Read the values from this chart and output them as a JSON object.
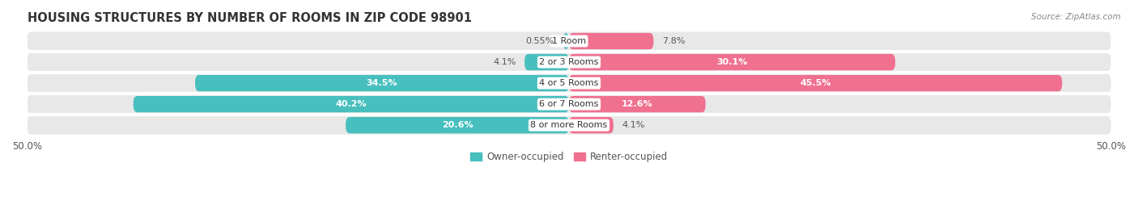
{
  "title": "HOUSING STRUCTURES BY NUMBER OF ROOMS IN ZIP CODE 98901",
  "source": "Source: ZipAtlas.com",
  "categories": [
    "1 Room",
    "2 or 3 Rooms",
    "4 or 5 Rooms",
    "6 or 7 Rooms",
    "8 or more Rooms"
  ],
  "owner_values": [
    0.55,
    4.1,
    34.5,
    40.2,
    20.6
  ],
  "renter_values": [
    7.8,
    30.1,
    45.5,
    12.6,
    4.1
  ],
  "owner_color": "#47BFBE",
  "renter_color": "#F07090",
  "owner_label": "Owner-occupied",
  "renter_label": "Renter-occupied",
  "xlim_left": -50,
  "xlim_right": 50,
  "background_color": "#ffffff",
  "row_bg_color": "#e8e8e8",
  "separator_color": "#ffffff",
  "title_fontsize": 10.5,
  "source_fontsize": 7.5,
  "value_fontsize": 8,
  "category_fontsize": 8,
  "legend_fontsize": 8.5,
  "axis_label_fontsize": 8.5
}
